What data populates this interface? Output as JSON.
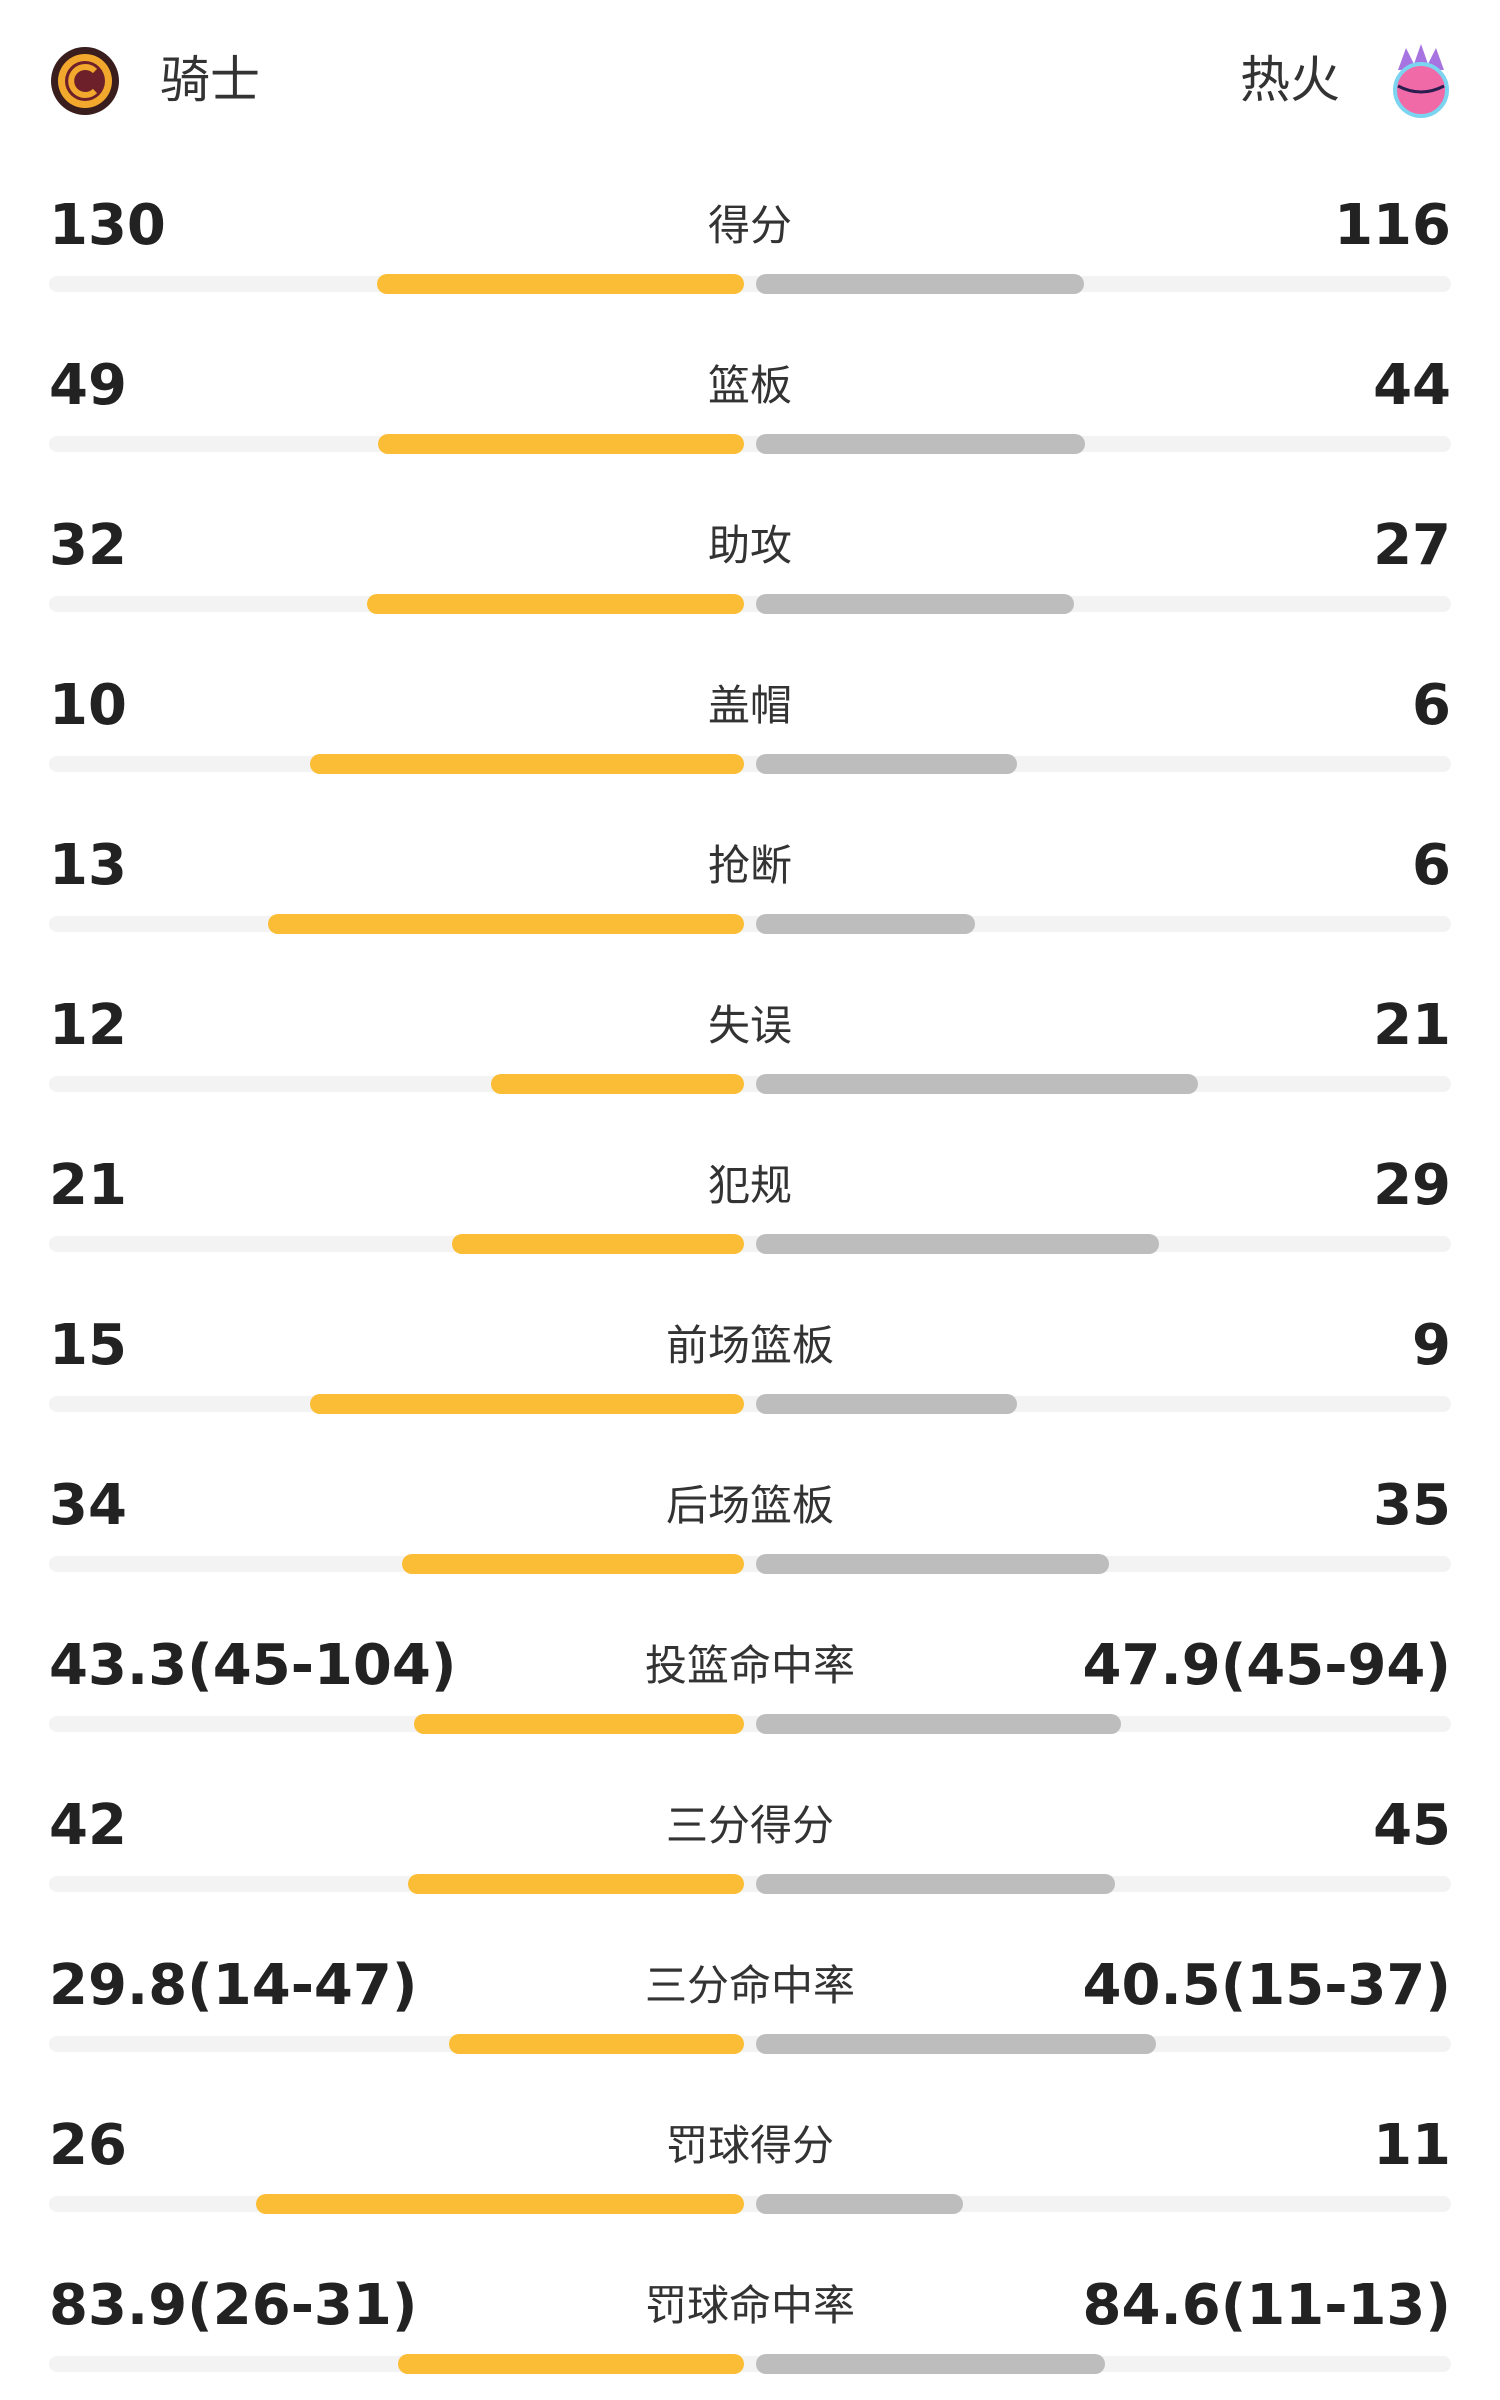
{
  "header": {
    "home": "骑士",
    "away": "热火"
  },
  "stats": [
    {
      "label": "得分",
      "left": 130,
      "right": 116
    },
    {
      "label": "篮板",
      "left": 49,
      "right": 44
    },
    {
      "label": "助攻",
      "left": 32,
      "right": 27
    },
    {
      "label": "盖帽",
      "left": 10,
      "right": 6
    },
    {
      "label": "抢断",
      "left": 13,
      "right": 6
    },
    {
      "label": "失误",
      "left": 12,
      "right": 21
    },
    {
      "label": "犯规",
      "left": 21,
      "right": 29
    },
    {
      "label": "前场篮板",
      "left": 15,
      "right": 9
    },
    {
      "label": "后场篮板",
      "left": 34,
      "right": 35
    },
    {
      "label": "投篮命中率",
      "left": {
        "value": 43.3,
        "label": "43.3(45-104)"
      },
      "right": {
        "value": 47.9,
        "label": "47.9(45-94)"
      }
    },
    {
      "label": "三分得分",
      "left": 42,
      "right": 45
    },
    {
      "label": "三分命中率",
      "left": {
        "value": 29.8,
        "label": "29.8(14-47)"
      },
      "right": {
        "value": 40.5,
        "label": "40.5(15-37)"
      }
    },
    {
      "label": "罚球得分",
      "left": 26,
      "right": 11
    },
    {
      "label": "罚球命中率",
      "left": {
        "value": 83.9,
        "label": "83.9(26-31)"
      },
      "right": {
        "value": 84.6,
        "label": "84.6(11-13)"
      }
    }
  ]
}
